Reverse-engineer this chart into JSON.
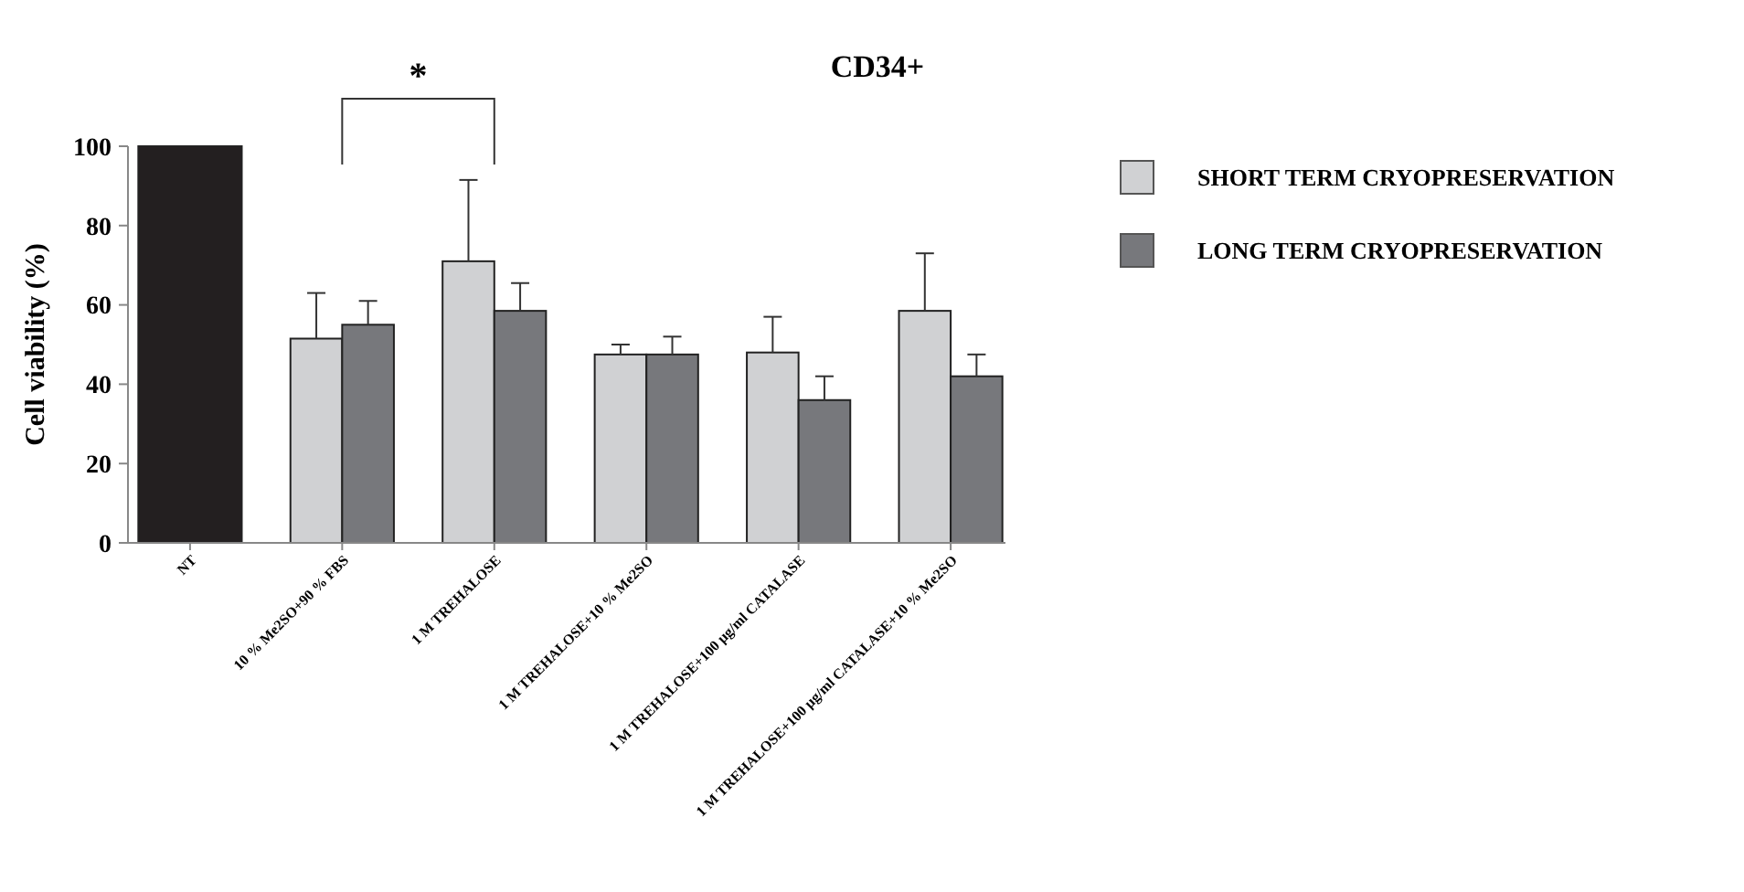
{
  "chart_data": {
    "type": "bar",
    "title": "CD34+",
    "ylabel": "Cell viability (%)",
    "categories": [
      "NT",
      "10 % Me2SO+90 % FBS",
      "1 M TREHALOSE",
      "1 M TREHALOSE+10 % Me2SO",
      "1 M TREHALOSE+100 μg/ml CATALASE",
      "1 M TREHALOSE+100 μg/ml CATALASE+10 % Me2SO"
    ],
    "series": [
      {
        "color": "#231f20",
        "values": [
          100,
          null,
          null,
          null,
          null,
          null
        ]
      },
      {
        "name": "SHORT TERM CRYOPRESERVATION",
        "color": "#d0d1d3",
        "values": [
          null,
          51.5,
          71,
          47.5,
          48,
          58.5
        ],
        "errors": [
          null,
          11.5,
          20.5,
          2.5,
          9,
          14.5
        ]
      },
      {
        "name": "LONG TERM CRYOPRESERVATION",
        "color": "#77787c",
        "values": [
          null,
          55,
          58.5,
          47.5,
          36,
          42
        ],
        "errors": [
          null,
          6,
          7,
          4.5,
          6,
          5.5
        ]
      }
    ],
    "ylim": [
      0,
      100
    ],
    "yticks": [
      0,
      20,
      40,
      60,
      80,
      100
    ],
    "grid": false,
    "legend": "right",
    "annotations": [
      "*"
    ]
  }
}
